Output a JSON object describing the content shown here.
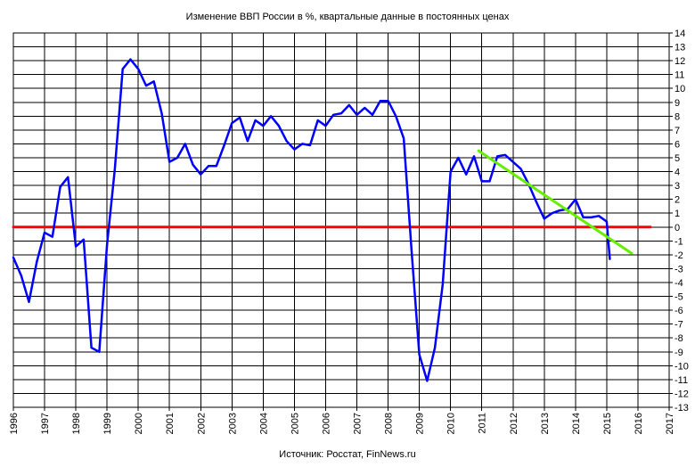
{
  "chart_data": {
    "type": "line",
    "title": "Изменение ВВП России в %, квартальные данные в постоянных ценах",
    "source": "Источник: Росстат, FinNews.ru",
    "xlabel": "",
    "ylabel": "",
    "xlim": [
      1996,
      2017
    ],
    "ylim": [
      -13,
      14
    ],
    "y_ticks": [
      14,
      13,
      12,
      11,
      10,
      9,
      8,
      7,
      6,
      5,
      4,
      3,
      2,
      1,
      0,
      -1,
      -2,
      -3,
      -4,
      -5,
      -6,
      -7,
      -8,
      -9,
      -10,
      -11,
      -12,
      -13
    ],
    "x_ticks": [
      1996,
      1997,
      1998,
      1999,
      2000,
      2001,
      2002,
      2003,
      2004,
      2005,
      2006,
      2007,
      2008,
      2009,
      2010,
      2011,
      2012,
      2013,
      2014,
      2015,
      2016,
      2017
    ],
    "y_axis_side": "right",
    "grid": true,
    "legend": "none",
    "colors": {
      "gdp": "#0000ff",
      "zero": "#ff0000",
      "trend": "#66ee00"
    },
    "series": [
      {
        "x": [
          1996.0,
          1996.25,
          1996.5,
          1996.75,
          1997.0,
          1997.25,
          1997.5,
          1997.75,
          1998.0,
          1998.25,
          1998.5,
          1998.75,
          1999.0,
          1999.25,
          1999.5,
          1999.75,
          2000.0,
          2000.25,
          2000.5,
          2000.75,
          2001.0,
          2001.25,
          2001.5,
          2001.75,
          2002.0,
          2002.25,
          2002.5,
          2002.75,
          2003.0,
          2003.25,
          2003.5,
          2003.75,
          2004.0,
          2004.25,
          2004.5,
          2004.75,
          2005.0,
          2005.25,
          2005.5,
          2005.75,
          2006.0,
          2006.25,
          2006.5,
          2006.75,
          2007.0,
          2007.25,
          2007.5,
          2007.75,
          2008.0,
          2008.25,
          2008.5,
          2008.75,
          2009.0,
          2009.25,
          2009.5,
          2009.75,
          2010.0,
          2010.25,
          2010.5,
          2010.75,
          2011.0,
          2011.25,
          2011.5,
          2011.75,
          2012.0,
          2012.25,
          2012.5,
          2012.75,
          2013.0,
          2013.25,
          2013.5,
          2013.75,
          2014.0,
          2014.25,
          2014.5,
          2014.75,
          2015.0,
          2015.1
        ],
        "values": [
          -2.2,
          -3.5,
          -5.4,
          -2.5,
          -0.4,
          -0.7,
          2.9,
          3.6,
          -1.4,
          -0.9,
          -8.7,
          -9.0,
          -1.3,
          4.2,
          11.4,
          12.1,
          11.4,
          10.2,
          10.5,
          8.2,
          4.7,
          5.0,
          6.0,
          4.5,
          3.8,
          4.4,
          4.4,
          5.9,
          7.5,
          7.9,
          6.2,
          7.7,
          7.3,
          8.0,
          7.3,
          6.2,
          5.6,
          6.0,
          5.9,
          7.7,
          7.3,
          8.1,
          8.2,
          8.8,
          8.1,
          8.6,
          8.1,
          9.1,
          9.1,
          8.0,
          6.4,
          -1.7,
          -9.2,
          -11.1,
          -8.7,
          -4.1,
          4.0,
          5.0,
          3.8,
          5.1,
          3.3,
          3.3,
          5.1,
          5.2,
          4.7,
          4.2,
          3.1,
          1.8,
          0.6,
          1.0,
          1.2,
          1.3,
          2.0,
          0.7,
          0.7,
          0.8,
          0.4,
          -2.3
        ]
      },
      {
        "x": [
          1996.0,
          2016.4
        ],
        "values": [
          0,
          0
        ]
      },
      {
        "x": [
          2010.9,
          2015.8
        ],
        "values": [
          5.5,
          -1.9
        ]
      }
    ]
  }
}
